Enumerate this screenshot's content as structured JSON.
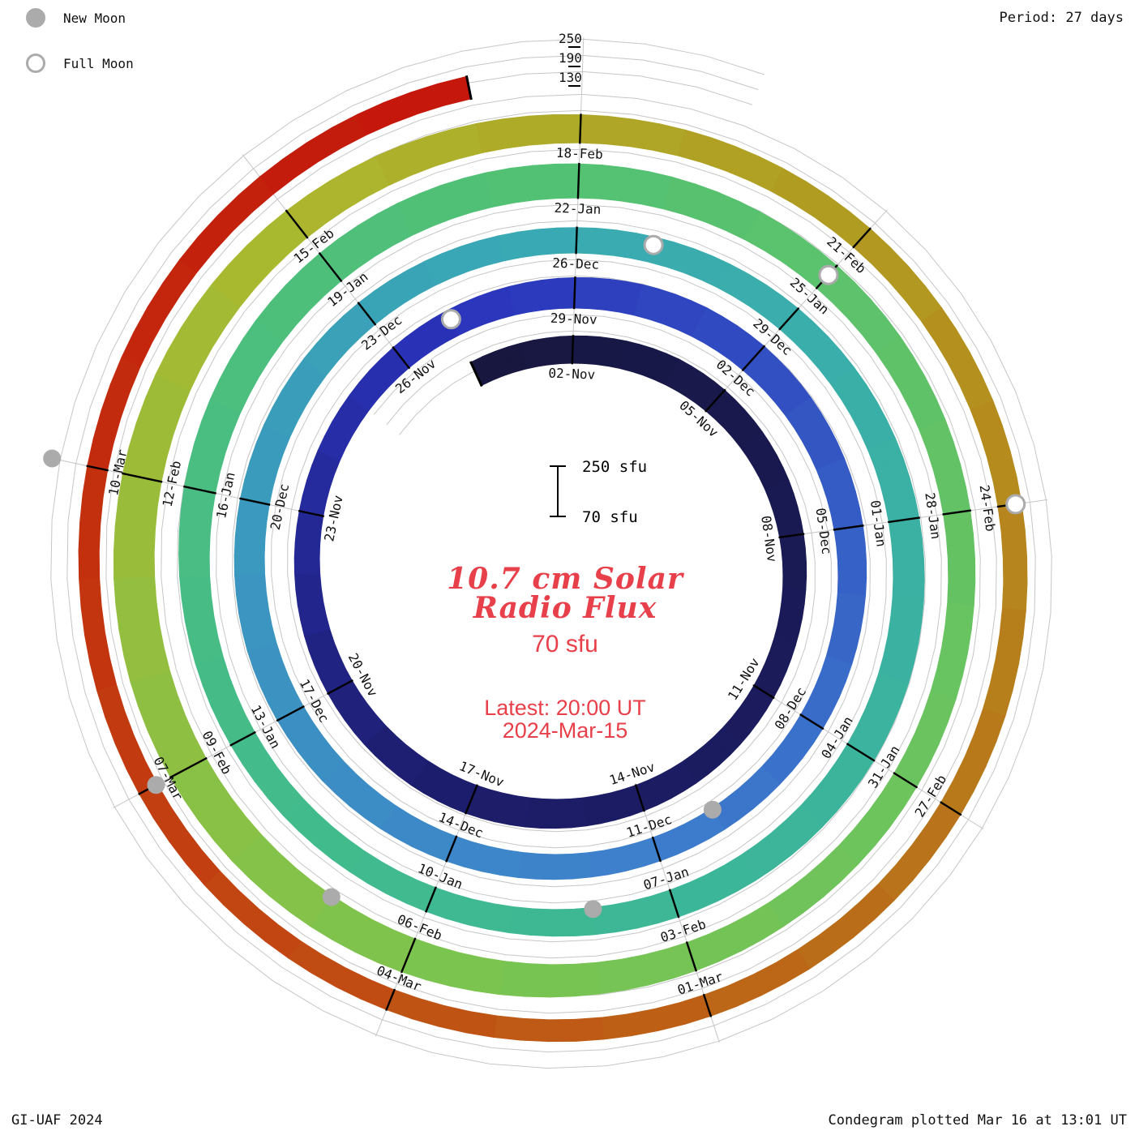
{
  "header": {
    "legend": [
      {
        "label": "New Moon",
        "type": "new"
      },
      {
        "label": "Full Moon",
        "type": "full"
      }
    ],
    "period_label": "Period: 27 days"
  },
  "footer": {
    "credit": "GI-UAF 2024",
    "plotted": "Condegram plotted Mar 16 at 13:01 UT"
  },
  "center": {
    "title_line1": "10.7 cm Solar",
    "title_line2": "Radio Flux",
    "base_value": "70 sfu",
    "latest_line1": "Latest: 20:00 UT",
    "latest_line2": "2024-Mar-15",
    "scale_top_label": "250 sfu",
    "scale_bottom_label": "70 sfu"
  },
  "radial_axis_labels": {
    "l250": "250",
    "l190": "190",
    "l130": "130"
  },
  "colors": {
    "accent_red": "#e8404a",
    "moon_gray": "#ababab",
    "grid_gray": "#c6c6c6",
    "tick_black": "#000000"
  },
  "chart_data": {
    "type": "bar",
    "variant": "spiral condegram (polar bar chart, one 27-day solar rotation per ring, time runs clockwise from center outward)",
    "title": "10.7 cm Solar Radio Flux",
    "units": "sfu",
    "baseline_sfu": 70,
    "flux_scale_sfu": {
      "min": 70,
      "max": 250
    },
    "gridline_levels_sfu": [
      130,
      190,
      250
    ],
    "period_days": 27,
    "start_date": "2023-10-31",
    "end_date": "2024-03-15",
    "flux_daily": [
      165,
      168,
      172,
      175,
      178,
      175,
      170,
      165,
      160,
      156,
      154,
      156,
      160,
      165,
      170,
      176,
      180,
      182,
      180,
      176,
      172,
      168,
      164,
      161,
      160,
      162,
      166,
      172,
      178,
      184,
      188,
      190,
      189,
      186,
      182,
      178,
      174,
      170,
      167,
      164,
      162,
      161,
      162,
      165,
      169,
      173,
      177,
      180,
      182,
      182,
      180,
      177,
      174,
      171,
      168,
      166,
      165,
      166,
      169,
      173,
      177,
      181,
      184,
      186,
      187,
      186,
      183,
      179,
      175,
      171,
      168,
      166,
      165,
      167,
      171,
      176,
      182,
      188,
      193,
      197,
      200,
      201,
      200,
      197,
      193,
      188,
      183,
      178,
      174,
      171,
      169,
      168,
      168,
      170,
      174,
      180,
      187,
      195,
      203,
      210,
      216,
      220,
      222,
      221,
      217,
      211,
      204,
      196,
      188,
      181,
      175,
      170,
      166,
      163,
      161,
      160,
      159,
      158,
      157,
      156,
      155,
      154,
      153,
      152,
      151,
      150,
      149,
      148,
      147,
      146,
      146,
      147,
      148,
      150,
      152,
      154,
      155
    ],
    "date_tick_labels": [
      {
        "label": "02-Nov",
        "day": 2
      },
      {
        "label": "05-Nov",
        "day": 5
      },
      {
        "label": "08-Nov",
        "day": 8
      },
      {
        "label": "11-Nov",
        "day": 11
      },
      {
        "label": "14-Nov",
        "day": 14
      },
      {
        "label": "17-Nov",
        "day": 17
      },
      {
        "label": "20-Nov",
        "day": 20
      },
      {
        "label": "23-Nov",
        "day": 23
      },
      {
        "label": "26-Nov",
        "day": 26
      },
      {
        "label": "29-Nov",
        "day": 29
      },
      {
        "label": "02-Dec",
        "day": 32
      },
      {
        "label": "05-Dec",
        "day": 35
      },
      {
        "label": "08-Dec",
        "day": 38
      },
      {
        "label": "11-Dec",
        "day": 41
      },
      {
        "label": "14-Dec",
        "day": 44
      },
      {
        "label": "17-Dec",
        "day": 47
      },
      {
        "label": "20-Dec",
        "day": 50
      },
      {
        "label": "23-Dec",
        "day": 53
      },
      {
        "label": "26-Dec",
        "day": 56
      },
      {
        "label": "29-Dec",
        "day": 59
      },
      {
        "label": "01-Jan",
        "day": 62
      },
      {
        "label": "04-Jan",
        "day": 65
      },
      {
        "label": "07-Jan",
        "day": 68
      },
      {
        "label": "10-Jan",
        "day": 71
      },
      {
        "label": "13-Jan",
        "day": 74
      },
      {
        "label": "16-Jan",
        "day": 77
      },
      {
        "label": "19-Jan",
        "day": 80
      },
      {
        "label": "22-Jan",
        "day": 83
      },
      {
        "label": "25-Jan",
        "day": 86
      },
      {
        "label": "28-Jan",
        "day": 89
      },
      {
        "label": "31-Jan",
        "day": 92
      },
      {
        "label": "03-Feb",
        "day": 95
      },
      {
        "label": "06-Feb",
        "day": 98
      },
      {
        "label": "09-Feb",
        "day": 101
      },
      {
        "label": "12-Feb",
        "day": 104
      },
      {
        "label": "15-Feb",
        "day": 107
      },
      {
        "label": "18-Feb",
        "day": 110
      },
      {
        "label": "21-Feb",
        "day": 113
      },
      {
        "label": "24-Feb",
        "day": 116
      },
      {
        "label": "27-Feb",
        "day": 119
      },
      {
        "label": "01-Mar",
        "day": 122
      },
      {
        "label": "04-Mar",
        "day": 125
      },
      {
        "label": "07-Mar",
        "day": 128
      },
      {
        "label": "10-Mar",
        "day": 131
      }
    ],
    "moon_events": [
      {
        "date": "13-Nov",
        "day": 13,
        "phase": "new"
      },
      {
        "date": "27-Nov",
        "day": 27,
        "phase": "full"
      },
      {
        "date": "12-Dec",
        "day": 42,
        "phase": "new"
      },
      {
        "date": "27-Dec",
        "day": 57,
        "phase": "full"
      },
      {
        "date": "11-Jan",
        "day": 72,
        "phase": "new"
      },
      {
        "date": "25-Jan",
        "day": 86,
        "phase": "full"
      },
      {
        "date": "09-Feb",
        "day": 101,
        "phase": "new"
      },
      {
        "date": "24-Feb",
        "day": 116,
        "phase": "full"
      },
      {
        "date": "10-Mar",
        "day": 131,
        "phase": "new"
      }
    ],
    "color_stops": [
      {
        "day": 0,
        "color": "#17173f"
      },
      {
        "day": 18,
        "color": "#1d1d6e"
      },
      {
        "day": 27,
        "color": "#2a33bb"
      },
      {
        "day": 41,
        "color": "#3e7ecd"
      },
      {
        "day": 55,
        "color": "#39a9b4"
      },
      {
        "day": 70,
        "color": "#3db992"
      },
      {
        "day": 83,
        "color": "#54c173"
      },
      {
        "day": 98,
        "color": "#7cc44f"
      },
      {
        "day": 107,
        "color": "#abb82e"
      },
      {
        "day": 114,
        "color": "#b3941f"
      },
      {
        "day": 121,
        "color": "#bb6a18"
      },
      {
        "day": 128,
        "color": "#c23c10"
      },
      {
        "day": 136,
        "color": "#c5150b"
      }
    ],
    "legend_position": "top-left",
    "grid": true
  }
}
